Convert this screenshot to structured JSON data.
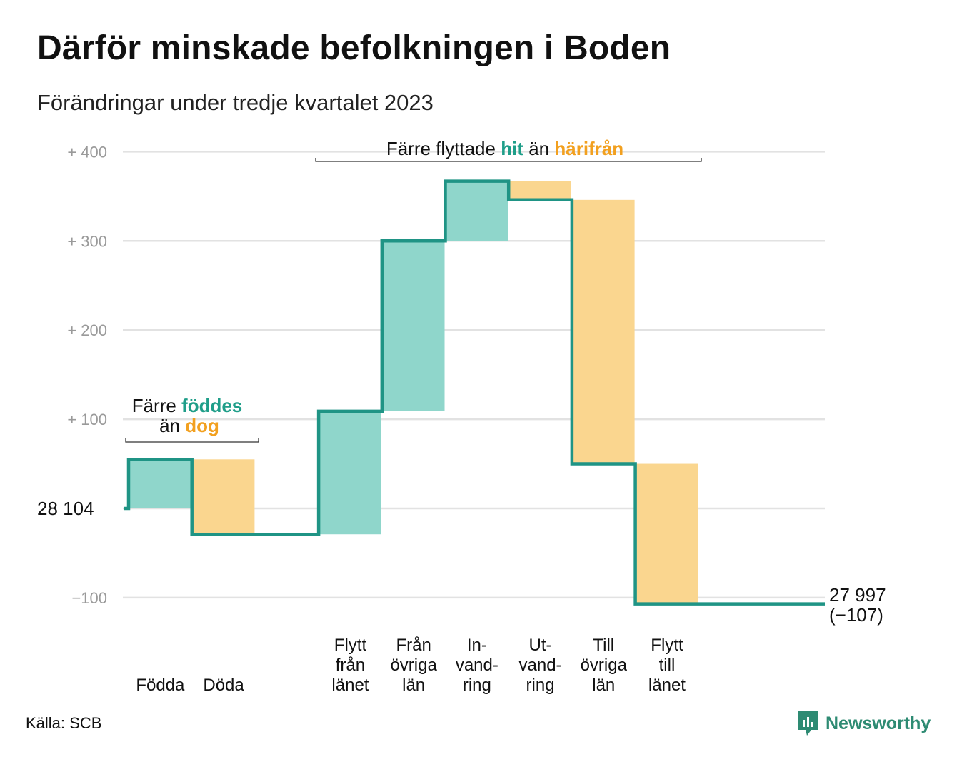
{
  "title": "Därför minskade befolkningen i Boden",
  "subtitle": "Förändringar under tredje kvartalet 2023",
  "source": "Källa: SCB",
  "brand": "Newsworthy",
  "colors": {
    "increase": "#8fd6cb",
    "decrease": "#fad68f",
    "line": "#1f9485",
    "grid": "#e2e2e2",
    "teal_text": "#1f9e89",
    "orange_text": "#f2a01f"
  },
  "chart_data": {
    "type": "waterfall",
    "start_value": 28104,
    "start_label": "28 104",
    "end_value": 27997,
    "end_label": "27 997",
    "net_change_label": "(−107)",
    "ylim": [
      -110,
      410
    ],
    "ticks": [
      {
        "value": 400,
        "label": "+  400"
      },
      {
        "value": 300,
        "label": "+  300"
      },
      {
        "value": 200,
        "label": "+  200"
      },
      {
        "value": 100,
        "label": "+  100"
      },
      {
        "value": -100,
        "label": "−100"
      }
    ],
    "steps": [
      {
        "name": "births",
        "label_lines": [
          "Födda"
        ],
        "change": 55,
        "kind": "increase"
      },
      {
        "name": "deaths",
        "label_lines": [
          "Döda"
        ],
        "change": -84,
        "kind": "decrease"
      },
      {
        "name": "gap",
        "label_lines": [],
        "change": 0,
        "kind": "none"
      },
      {
        "name": "from-county",
        "label_lines": [
          "Flytt",
          "från",
          "länet"
        ],
        "change": 138,
        "kind": "increase"
      },
      {
        "name": "from-other-counties",
        "label_lines": [
          "Från",
          "övriga",
          "län"
        ],
        "change": 191,
        "kind": "increase"
      },
      {
        "name": "immigration",
        "label_lines": [
          "In-",
          "vand-",
          "ring"
        ],
        "change": 67,
        "kind": "increase"
      },
      {
        "name": "emigration",
        "label_lines": [
          "Ut-",
          "vand-",
          "ring"
        ],
        "change": -21,
        "kind": "decrease"
      },
      {
        "name": "to-other-counties",
        "label_lines": [
          "Till",
          "övriga",
          "län"
        ],
        "change": -296,
        "kind": "decrease"
      },
      {
        "name": "to-county",
        "label_lines": [
          "Flytt",
          "till",
          "länet"
        ],
        "change": -157,
        "kind": "decrease"
      }
    ],
    "annotations": {
      "births_deaths": {
        "line1_prefix": "Färre",
        "line1_highlight": "föddes",
        "line2_prefix": "än",
        "line2_highlight": "dog"
      },
      "migration": {
        "prefix": "Färre flyttade",
        "highlight1": "hit",
        "middle": "än",
        "highlight2": "härifrån"
      }
    }
  }
}
